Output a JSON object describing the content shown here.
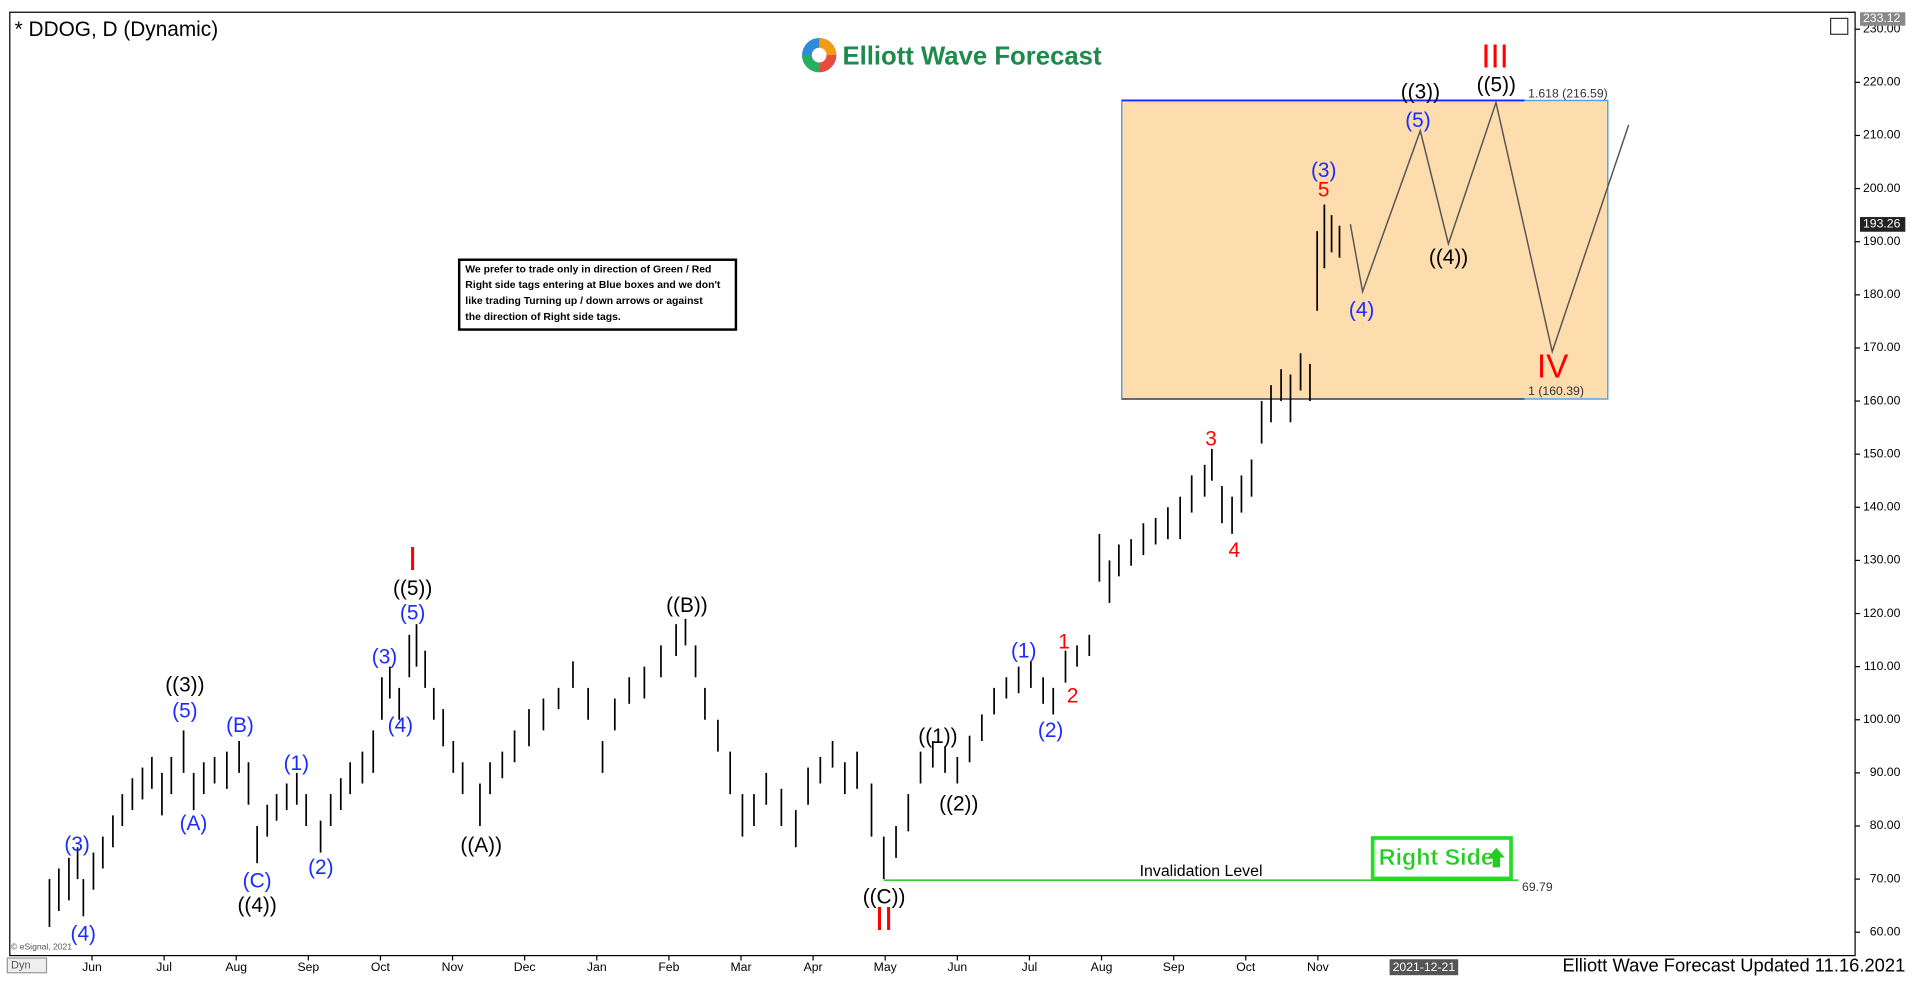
{
  "chart_data": {
    "type": "hilo",
    "title": "* DDOG, D (Dynamic)",
    "brand": "Elliott Wave Forecast",
    "footer": "Elliott Wave Forecast Updated 11.16.2021",
    "copyright": "© eSignal, 2021",
    "mode_tag": "Dyn",
    "note": [
      "We prefer to trade only in direction of Green / Red",
      "Right side tags entering at Blue boxes and we don't",
      "like trading Turning up / down arrows or against",
      "the direction of Right side tags."
    ],
    "right_side": "Right Side",
    "bar_color": "#000000",
    "xlim": [
      -1.14,
      24.45
    ],
    "ylim": [
      55.6,
      233.2
    ],
    "xticks": [
      {
        "value": 0,
        "label": "Jun"
      },
      {
        "value": 1,
        "label": "Jul"
      },
      {
        "value": 2,
        "label": "Aug"
      },
      {
        "value": 3,
        "label": "Sep"
      },
      {
        "value": 4,
        "label": "Oct"
      },
      {
        "value": 5,
        "label": "Nov"
      },
      {
        "value": 6,
        "label": "Dec"
      },
      {
        "value": 7,
        "label": "Jan"
      },
      {
        "value": 8,
        "label": "Feb"
      },
      {
        "value": 9,
        "label": "Mar"
      },
      {
        "value": 10,
        "label": "Apr"
      },
      {
        "value": 11,
        "label": "May"
      },
      {
        "value": 12,
        "label": "Jun"
      },
      {
        "value": 13,
        "label": "Jul"
      },
      {
        "value": 14,
        "label": "Aug"
      },
      {
        "value": 15,
        "label": "Sep"
      },
      {
        "value": 16,
        "label": "Oct"
      },
      {
        "value": 17,
        "label": "Nov"
      }
    ],
    "cursor_date": {
      "value": 18.47,
      "label": "2021-12-21"
    },
    "yticks": [
      {
        "value": 60,
        "label": "60.00"
      },
      {
        "value": 70,
        "label": "70.00"
      },
      {
        "value": 80,
        "label": "80.00"
      },
      {
        "value": 90,
        "label": "90.00"
      },
      {
        "value": 100,
        "label": "100.00"
      },
      {
        "value": 110,
        "label": "110.00"
      },
      {
        "value": 120,
        "label": "120.00"
      },
      {
        "value": 130,
        "label": "130.00"
      },
      {
        "value": 140,
        "label": "140.00"
      },
      {
        "value": 150,
        "label": "150.00"
      },
      {
        "value": 160,
        "label": "160.00"
      },
      {
        "value": 170,
        "label": "170.00"
      },
      {
        "value": 180,
        "label": "180.00"
      },
      {
        "value": 190,
        "label": "190.00"
      },
      {
        "value": 200,
        "label": "200.00"
      },
      {
        "value": 210,
        "label": "210.00"
      },
      {
        "value": 220,
        "label": "220.00"
      },
      {
        "value": 230,
        "label": "230.00"
      }
    ],
    "last_price": 193.26,
    "top_price": 233.12,
    "bars": {
      "x": [
        -0.59,
        -0.46,
        -0.32,
        -0.2,
        -0.12,
        0.02,
        0.15,
        0.29,
        0.42,
        0.56,
        0.7,
        0.83,
        0.97,
        1.1,
        1.27,
        1.41,
        1.55,
        1.7,
        1.87,
        2.04,
        2.17,
        2.29,
        2.43,
        2.56,
        2.7,
        2.84,
        2.97,
        3.17,
        3.31,
        3.45,
        3.58,
        3.75,
        3.9,
        4.02,
        4.13,
        4.26,
        4.4,
        4.5,
        4.62,
        4.74,
        4.87,
        5.01,
        5.14,
        5.38,
        5.52,
        5.69,
        5.86,
        6.06,
        6.26,
        6.47,
        6.67,
        6.88,
        7.08,
        7.25,
        7.45,
        7.66,
        7.89,
        8.1,
        8.23,
        8.37,
        8.5,
        8.68,
        8.85,
        9.02,
        9.18,
        9.35,
        9.56,
        9.76,
        9.93,
        10.1,
        10.27,
        10.44,
        10.61,
        10.81,
        10.98,
        11.15,
        11.32,
        11.49,
        11.66,
        11.83,
        12.0,
        12.17,
        12.34,
        12.51,
        12.68,
        12.85,
        13.02,
        13.19,
        13.33,
        13.5,
        13.66,
        13.83,
        13.97,
        14.11,
        14.24,
        14.41,
        14.58,
        14.75,
        14.92,
        15.09,
        15.25,
        15.43,
        15.53,
        15.67,
        15.81,
        15.94,
        16.08,
        16.22,
        16.35,
        16.49,
        16.62,
        16.76,
        16.89,
        16.99,
        17.09,
        17.19,
        17.3
      ],
      "high": [
        70,
        72,
        74,
        76,
        70,
        75,
        78,
        82,
        86,
        89,
        91,
        93,
        90,
        93,
        98,
        90,
        92,
        93,
        94,
        96,
        92,
        80,
        84,
        86,
        88,
        90,
        86,
        81,
        86,
        89,
        92,
        94,
        98,
        108,
        110,
        106,
        116,
        118,
        113,
        106,
        102,
        96,
        92,
        88,
        92,
        94,
        98,
        102,
        104,
        106,
        111,
        106,
        96,
        104,
        108,
        110,
        114,
        118,
        119,
        114,
        106,
        100,
        94,
        86,
        86,
        90,
        87,
        83,
        91,
        93,
        96,
        92,
        94,
        88,
        78,
        80,
        86,
        94,
        96,
        95,
        93,
        97,
        101,
        106,
        108,
        110,
        111,
        108,
        106,
        113,
        114,
        116,
        135,
        130,
        133,
        134,
        137,
        138,
        140,
        142,
        146,
        148,
        151,
        144,
        142,
        146,
        149,
        160,
        163,
        166,
        165,
        169,
        167,
        192,
        197,
        195,
        193
      ],
      "low": [
        61,
        64,
        66,
        70,
        63,
        68,
        72,
        76,
        80,
        83,
        85,
        87,
        82,
        86,
        90,
        83,
        86,
        88,
        87,
        90,
        84,
        73,
        78,
        81,
        83,
        84,
        80,
        75,
        80,
        83,
        86,
        88,
        90,
        100,
        104,
        100,
        108,
        110,
        106,
        100,
        95,
        90,
        86,
        80,
        86,
        89,
        92,
        95,
        98,
        102,
        106,
        100,
        90,
        98,
        103,
        104,
        108,
        112,
        114,
        108,
        100,
        94,
        86,
        78,
        80,
        84,
        80,
        76,
        84,
        88,
        91,
        86,
        87,
        78,
        70,
        74,
        79,
        88,
        91,
        90,
        88,
        92,
        96,
        101,
        104,
        105,
        106,
        103,
        101,
        107,
        110,
        112,
        126,
        122,
        127,
        129,
        131,
        133,
        134,
        134,
        139,
        142,
        145,
        137,
        135,
        139,
        142,
        152,
        156,
        160,
        156,
        162,
        160,
        177,
        185,
        188,
        187
      ]
    },
    "fib_box": {
      "x": [
        14.28,
        21.02
      ],
      "top": 216.59,
      "bottom": 160.39,
      "top_label": "1.618 (216.59)",
      "bottom_label": "1 (160.39)",
      "color": "#fddcae"
    },
    "invalidation": {
      "x": [
        10.98,
        19.78
      ],
      "value": 69.79,
      "label": "Invalidation Level",
      "color": "#33cc33"
    },
    "projection": {
      "x": [
        17.45,
        17.62,
        18.42,
        18.81,
        19.47,
        20.25,
        21.31
      ],
      "y": [
        193.3,
        180.6,
        210.9,
        189.6,
        216.2,
        169.3,
        212.0
      ],
      "color": "#555555"
    },
    "annotations": [
      {
        "text": "((3))",
        "color": "#000000"
      },
      {
        "text": "((4))",
        "color": "#000000"
      },
      {
        "text": "((5))",
        "color": "#000000"
      },
      {
        "text": "((A))",
        "color": "#000000"
      },
      {
        "text": "((B))",
        "color": "#000000"
      },
      {
        "text": "((C))",
        "color": "#000000"
      },
      {
        "text": "((1))",
        "color": "#000000"
      },
      {
        "text": "((2))",
        "color": "#000000"
      },
      {
        "text": "((3))",
        "color": "#000000"
      },
      {
        "text": "((4))",
        "color": "#000000"
      },
      {
        "text": "((5))",
        "color": "#000000"
      },
      {
        "text": "(3)",
        "color": "#1a2bff"
      },
      {
        "text": "(4)",
        "color": "#1a2bff"
      },
      {
        "text": "(5)",
        "color": "#1a2bff"
      },
      {
        "text": "(A)",
        "color": "#1a2bff"
      },
      {
        "text": "(B)",
        "color": "#1a2bff"
      },
      {
        "text": "(C)",
        "color": "#1a2bff"
      },
      {
        "text": "(1)",
        "color": "#1a2bff"
      },
      {
        "text": "(2)",
        "color": "#1a2bff"
      },
      {
        "text": "(3)",
        "color": "#1a2bff"
      },
      {
        "text": "(4)",
        "color": "#1a2bff"
      },
      {
        "text": "(5)",
        "color": "#1a2bff"
      },
      {
        "text": "(1)",
        "color": "#1a2bff"
      },
      {
        "text": "(2)",
        "color": "#1a2bff"
      },
      {
        "text": "(3)",
        "color": "#1a2bff"
      },
      {
        "text": "(5)",
        "color": "#1a2bff"
      },
      {
        "text": "(4)",
        "color": "#1a2bff"
      },
      {
        "text": "1",
        "color": "#ff0000"
      },
      {
        "text": "2",
        "color": "#ff0000"
      },
      {
        "text": "3",
        "color": "#ff0000"
      },
      {
        "text": "4",
        "color": "#ff0000"
      },
      {
        "text": "5",
        "color": "#ff0000"
      },
      {
        "text": "I",
        "color": "#ff0000"
      },
      {
        "text": "II",
        "color": "#ff0000"
      },
      {
        "text": "III",
        "color": "#ff0000"
      },
      {
        "text": "IV",
        "color": "#ff0000"
      }
    ]
  }
}
